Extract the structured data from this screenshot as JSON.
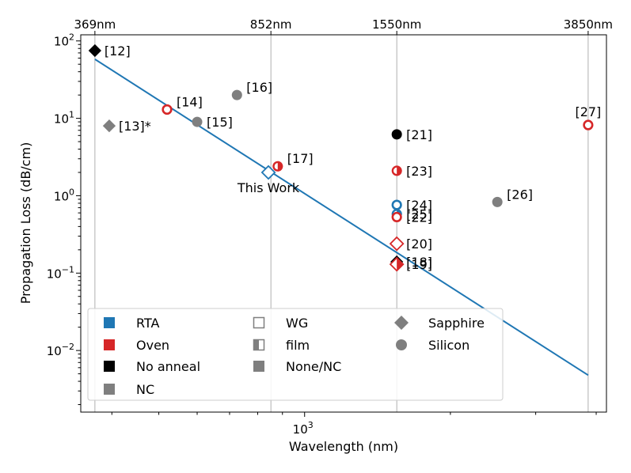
{
  "chart_data": {
    "type": "scatter",
    "title": "",
    "xlabel": "Wavelength (nm)",
    "ylabel": "Propagation Loss (dB/cm)",
    "xscale": "log",
    "yscale": "log",
    "xlim": [
      345,
      4200
    ],
    "ylim": [
      0.0016,
      120
    ],
    "x_tick_labels": [
      {
        "value": 1000,
        "base": "10",
        "exp": "3"
      }
    ],
    "y_tick_labels": [
      {
        "value": 100,
        "base": "10",
        "exp": "2"
      },
      {
        "value": 10,
        "base": "10",
        "exp": "1"
      },
      {
        "value": 1,
        "base": "10",
        "exp": "0"
      },
      {
        "value": 0.1,
        "base": "10",
        "exp": "−1"
      },
      {
        "value": 0.01,
        "base": "10",
        "exp": "−2"
      }
    ],
    "top_axis_labels": [
      {
        "value": 369,
        "label": "369nm"
      },
      {
        "value": 852,
        "label": "852nm"
      },
      {
        "value": 1550,
        "label": "1550nm"
      },
      {
        "value": 3850,
        "label": "3850nm"
      }
    ],
    "vertical_lines": [
      369,
      852,
      1550,
      3850
    ],
    "fit_line": {
      "color": "#1f77b4",
      "x": [
        369,
        3850
      ],
      "y": [
        58,
        0.0048
      ]
    },
    "points": [
      {
        "label": "[12]",
        "x": 369,
        "y": 75,
        "marker": "diamond",
        "fill": "full",
        "color": "#000000",
        "label_pos": "right"
      },
      {
        "label": "[13]*",
        "x": 395,
        "y": 8,
        "marker": "diamond",
        "fill": "full",
        "color": "#7f7f7f",
        "label_pos": "right"
      },
      {
        "label": "[14]",
        "x": 520,
        "y": 13,
        "marker": "circle",
        "fill": "hollow",
        "color": "#d62728",
        "label_pos": "right-up"
      },
      {
        "label": "[15]",
        "x": 600,
        "y": 9,
        "marker": "circle",
        "fill": "full",
        "color": "#7f7f7f",
        "label_pos": "right"
      },
      {
        "label": "[16]",
        "x": 725,
        "y": 20,
        "marker": "circle",
        "fill": "full",
        "color": "#7f7f7f",
        "label_pos": "right-up"
      },
      {
        "label": "This Work",
        "x": 842,
        "y": 2.0,
        "marker": "diamond",
        "fill": "hollow",
        "color": "#1f77b4",
        "label_pos": "below"
      },
      {
        "label": "[17]",
        "x": 880,
        "y": 2.4,
        "marker": "circle",
        "fill": "half",
        "color": "#d62728",
        "label_pos": "right-up"
      },
      {
        "label": "[21]",
        "x": 1550,
        "y": 6.2,
        "marker": "circle",
        "fill": "full",
        "color": "#000000",
        "label_pos": "right"
      },
      {
        "label": "[23]",
        "x": 1550,
        "y": 2.1,
        "marker": "circle",
        "fill": "half",
        "color": "#d62728",
        "label_pos": "right"
      },
      {
        "label": "[24]",
        "x": 1550,
        "y": 0.76,
        "marker": "circle",
        "fill": "hollow",
        "color": "#1f77b4",
        "label_pos": "right"
      },
      {
        "label": "[25]",
        "x": 1550,
        "y": 0.58,
        "marker": "circle",
        "fill": "half",
        "color": "#1f77b4",
        "label_pos": "right"
      },
      {
        "label": "[22]",
        "x": 1550,
        "y": 0.53,
        "marker": "circle",
        "fill": "hollow",
        "color": "#d62728",
        "label_pos": "right"
      },
      {
        "label": "[20]",
        "x": 1550,
        "y": 0.24,
        "marker": "diamond",
        "fill": "hollow",
        "color": "#d62728",
        "label_pos": "right"
      },
      {
        "label": "[18]",
        "x": 1550,
        "y": 0.14,
        "marker": "diamond",
        "fill": "full",
        "color": "#000000",
        "label_pos": "right"
      },
      {
        "label": "[19]",
        "x": 1550,
        "y": 0.13,
        "marker": "diamond",
        "fill": "half",
        "color": "#d62728",
        "label_pos": "right"
      },
      {
        "label": "[26]",
        "x": 2500,
        "y": 0.83,
        "marker": "circle",
        "fill": "full",
        "color": "#7f7f7f",
        "label_pos": "right-up"
      },
      {
        "label": "[27]",
        "x": 3850,
        "y": 8.2,
        "marker": "circle",
        "fill": "hollow",
        "color": "#d62728",
        "label_pos": "above"
      }
    ],
    "legend": {
      "position": "lower-left",
      "entries": [
        {
          "label": "RTA",
          "symbol": "square-full",
          "color": "#1f77b4"
        },
        {
          "label": "Oven",
          "symbol": "square-full",
          "color": "#d62728"
        },
        {
          "label": "No anneal",
          "symbol": "square-full",
          "color": "#000000"
        },
        {
          "label": "NC",
          "symbol": "square-full",
          "color": "#7f7f7f"
        },
        {
          "label": "WG",
          "symbol": "square-hollow",
          "color": "#7f7f7f"
        },
        {
          "label": "film",
          "symbol": "square-half",
          "color": "#7f7f7f"
        },
        {
          "label": "None/NC",
          "symbol": "square-full",
          "color": "#7f7f7f"
        },
        {
          "label": "Sapphire",
          "symbol": "diamond",
          "color": "#7f7f7f"
        },
        {
          "label": "Silicon",
          "symbol": "circle",
          "color": "#7f7f7f"
        }
      ]
    }
  }
}
